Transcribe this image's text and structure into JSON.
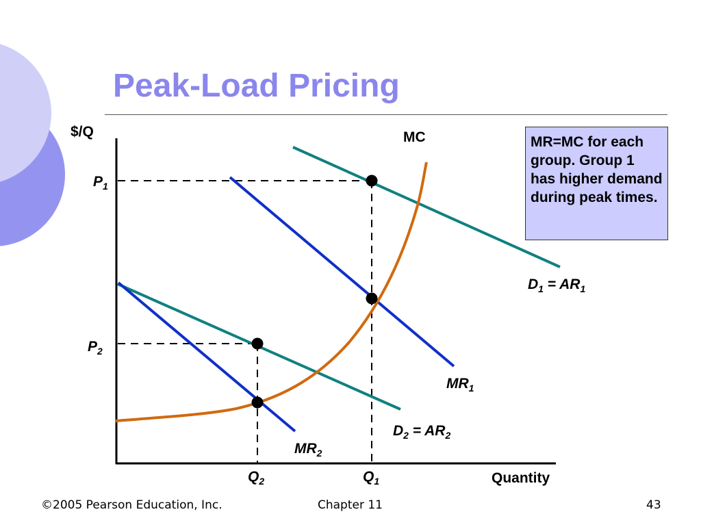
{
  "slide": {
    "title": "Peak-Load Pricing",
    "footer_left": "©2005 Pearson Education, Inc.",
    "footer_center": "Chapter 11",
    "footer_right": "43"
  },
  "diagram": {
    "y_axis_label": "$/Q",
    "x_axis_label": "Quantity",
    "mc_label": "MC",
    "p1": {
      "main": "P",
      "sub": "1"
    },
    "p2": {
      "main": "P",
      "sub": "2"
    },
    "q1": {
      "main": "Q",
      "sub": "1"
    },
    "q2": {
      "main": "Q",
      "sub": "2"
    },
    "d1": {
      "main": "D",
      "sub": "1",
      "mid": " = AR",
      "sub2": "1"
    },
    "d2": {
      "main": "D",
      "sub": "2",
      "mid": " = AR",
      "sub2": "2"
    },
    "mr1": {
      "main": "MR",
      "sub": "1"
    },
    "mr2": {
      "main": "MR",
      "sub": "2"
    },
    "note_text": "MR=MC for each group. Group 1 has higher demand during peak times.",
    "colors": {
      "demand": "#108080",
      "marginal_revenue": "#1030c8",
      "marginal_cost": "#d06a10",
      "note_bg": "#ccccff",
      "title": "#8a86ec"
    }
  }
}
